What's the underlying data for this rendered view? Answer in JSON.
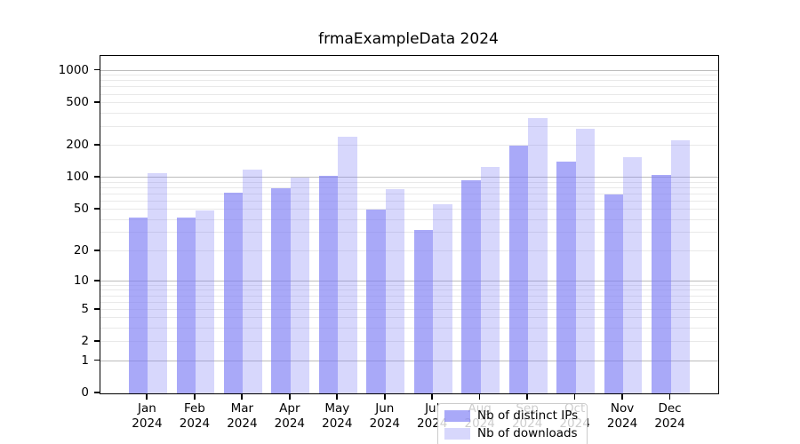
{
  "chart_data": {
    "type": "bar",
    "title": "frmaExampleData 2024",
    "categories": [
      "Jan",
      "Feb",
      "Mar",
      "Apr",
      "May",
      "Jun",
      "Jul",
      "Aug",
      "Sep",
      "Oct",
      "Nov",
      "Dec"
    ],
    "category_year": "2024",
    "series": [
      {
        "name": "Nb of distinct IPs",
        "color": "rgba(124,124,245,0.66)",
        "values": [
          42,
          42,
          73,
          80,
          105,
          50,
          32,
          95,
          200,
          141,
          70,
          106
        ]
      },
      {
        "name": "Nb of downloads",
        "color": "rgba(124,124,245,0.30)",
        "values": [
          110,
          49,
          119,
          101,
          242,
          79,
          56,
          126,
          360,
          287,
          155,
          225
        ]
      }
    ],
    "y_axis": {
      "scale": "log1p",
      "tick_values": [
        0,
        1,
        2,
        5,
        10,
        20,
        50,
        100,
        200,
        500,
        1000
      ],
      "tick_labels": [
        "0",
        "1",
        "2",
        "5",
        "10",
        "20",
        "50",
        "100",
        "200",
        "500",
        "1000"
      ],
      "major_gridlines": [
        1,
        10,
        100,
        1000
      ]
    },
    "legend_position": "lower center inside",
    "grid": true,
    "colors": {
      "major_grid": "#bcbcbc",
      "minor_grid": "#e9e9e9",
      "spine": "#000000",
      "background": "#ffffff"
    }
  }
}
